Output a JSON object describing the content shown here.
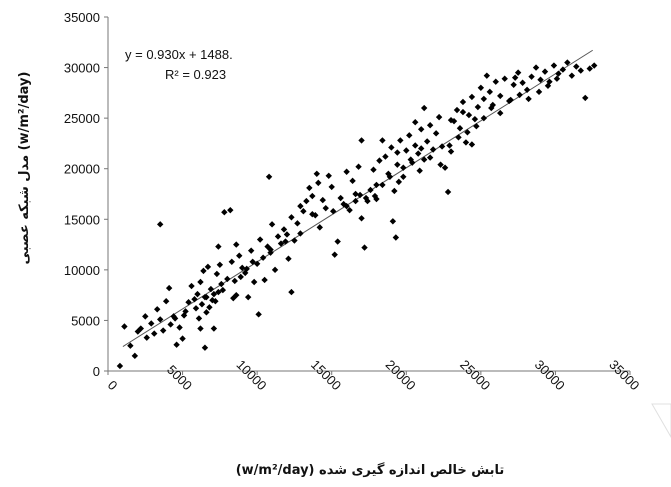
{
  "chart_data": {
    "type": "scatter",
    "title": "",
    "xlabel": "تابش خالص اندازه گیری شده  (w/m²/day)",
    "ylabel": "(w/m²/day)  مدل شبکه عصبی",
    "xlim": [
      0,
      35000
    ],
    "ylim": [
      0,
      35000
    ],
    "xticks": [
      "0",
      "5000",
      "10000",
      "15000",
      "20000",
      "25000",
      "30000",
      "35000"
    ],
    "yticks": [
      "0",
      "5000",
      "10000",
      "15000",
      "20000",
      "25000",
      "30000",
      "35000"
    ],
    "grid": false,
    "legend": "none",
    "trendline": {
      "slope": 0.93,
      "intercept": 1488,
      "x_start": 1000,
      "x_end": 32500,
      "equation_label": "y = 0.930x + 1488.",
      "r2_label": "R² = 0.923"
    },
    "marker_color": "#000000",
    "series": [
      {
        "points": [
          [
            800,
            500
          ],
          [
            1100,
            4400
          ],
          [
            1500,
            2500
          ],
          [
            1800,
            1500
          ],
          [
            2000,
            3900
          ],
          [
            2200,
            4200
          ],
          [
            2500,
            5400
          ],
          [
            2600,
            3300
          ],
          [
            2900,
            4700
          ],
          [
            3100,
            3700
          ],
          [
            3300,
            6100
          ],
          [
            3500,
            5100
          ],
          [
            3700,
            4000
          ],
          [
            3900,
            6900
          ],
          [
            4100,
            8200
          ],
          [
            4200,
            4600
          ],
          [
            4400,
            5400
          ],
          [
            4600,
            2600
          ],
          [
            4800,
            4300
          ],
          [
            5000,
            3200
          ],
          [
            5200,
            5900
          ],
          [
            5400,
            6800
          ],
          [
            5600,
            8400
          ],
          [
            5800,
            7100
          ],
          [
            5900,
            6200
          ],
          [
            6000,
            7600
          ],
          [
            6100,
            5200
          ],
          [
            6200,
            8800
          ],
          [
            6300,
            6600
          ],
          [
            6400,
            9900
          ],
          [
            6500,
            7300
          ],
          [
            6600,
            5800
          ],
          [
            6700,
            10300
          ],
          [
            6800,
            6300
          ],
          [
            6900,
            8100
          ],
          [
            7000,
            7000
          ],
          [
            7100,
            4200
          ],
          [
            7200,
            6900
          ],
          [
            7300,
            9600
          ],
          [
            7400,
            7800
          ],
          [
            7500,
            10500
          ],
          [
            7600,
            8600
          ],
          [
            7800,
            15700
          ],
          [
            8000,
            9100
          ],
          [
            8200,
            15900
          ],
          [
            8300,
            10800
          ],
          [
            8500,
            8900
          ],
          [
            8600,
            7500
          ],
          [
            8800,
            11400
          ],
          [
            9000,
            10200
          ],
          [
            9200,
            9700
          ],
          [
            9400,
            7300
          ],
          [
            9600,
            11900
          ],
          [
            9800,
            8800
          ],
          [
            10000,
            10600
          ],
          [
            10100,
            5600
          ],
          [
            10200,
            13000
          ],
          [
            10400,
            11200
          ],
          [
            10500,
            9000
          ],
          [
            10700,
            12300
          ],
          [
            10800,
            19200
          ],
          [
            10900,
            11700
          ],
          [
            11000,
            14500
          ],
          [
            11200,
            10000
          ],
          [
            11400,
            13300
          ],
          [
            11600,
            12600
          ],
          [
            11800,
            14000
          ],
          [
            12000,
            13500
          ],
          [
            12100,
            11100
          ],
          [
            12300,
            15200
          ],
          [
            12500,
            12900
          ],
          [
            12700,
            14600
          ],
          [
            12900,
            16300
          ],
          [
            13100,
            15800
          ],
          [
            13300,
            16800
          ],
          [
            13500,
            18100
          ],
          [
            13700,
            17300
          ],
          [
            13900,
            15400
          ],
          [
            14100,
            18600
          ],
          [
            14200,
            14200
          ],
          [
            14400,
            16900
          ],
          [
            14600,
            16100
          ],
          [
            14800,
            19300
          ],
          [
            15000,
            18200
          ],
          [
            15200,
            11500
          ],
          [
            15400,
            12800
          ],
          [
            15600,
            17100
          ],
          [
            15800,
            16500
          ],
          [
            16000,
            19700
          ],
          [
            16200,
            15900
          ],
          [
            16400,
            18800
          ],
          [
            16600,
            17500
          ],
          [
            16800,
            20200
          ],
          [
            17000,
            15100
          ],
          [
            17200,
            12200
          ],
          [
            17400,
            16800
          ],
          [
            17600,
            17900
          ],
          [
            17800,
            19900
          ],
          [
            18000,
            17000
          ],
          [
            18200,
            20800
          ],
          [
            18400,
            18400
          ],
          [
            18600,
            21200
          ],
          [
            18800,
            19500
          ],
          [
            19000,
            22100
          ],
          [
            19200,
            17800
          ],
          [
            19400,
            20400
          ],
          [
            19600,
            22800
          ],
          [
            19800,
            19200
          ],
          [
            20000,
            21800
          ],
          [
            20200,
            23300
          ],
          [
            20400,
            20600
          ],
          [
            20600,
            22300
          ],
          [
            20800,
            21500
          ],
          [
            21000,
            23900
          ],
          [
            21200,
            20900
          ],
          [
            21400,
            22700
          ],
          [
            21600,
            24300
          ],
          [
            21800,
            21900
          ],
          [
            22000,
            23500
          ],
          [
            22200,
            25100
          ],
          [
            22400,
            22200
          ],
          [
            22600,
            20100
          ],
          [
            22800,
            17700
          ],
          [
            23000,
            21700
          ],
          [
            23200,
            24700
          ],
          [
            23400,
            25800
          ],
          [
            23600,
            24000
          ],
          [
            23800,
            26600
          ],
          [
            24000,
            22600
          ],
          [
            24200,
            25300
          ],
          [
            24400,
            27100
          ],
          [
            24600,
            24900
          ],
          [
            24800,
            26100
          ],
          [
            25000,
            28000
          ],
          [
            25200,
            26900
          ],
          [
            25400,
            29200
          ],
          [
            25600,
            27600
          ],
          [
            25800,
            26300
          ],
          [
            26000,
            28600
          ],
          [
            26300,
            27200
          ],
          [
            26600,
            28900
          ],
          [
            26900,
            26700
          ],
          [
            27200,
            28300
          ],
          [
            27500,
            29500
          ],
          [
            27800,
            28500
          ],
          [
            28100,
            27800
          ],
          [
            28400,
            29100
          ],
          [
            28700,
            30000
          ],
          [
            29000,
            28800
          ],
          [
            29300,
            29600
          ],
          [
            29600,
            28600
          ],
          [
            29900,
            30200
          ],
          [
            30200,
            29400
          ],
          [
            30500,
            29800
          ],
          [
            30800,
            30500
          ],
          [
            31100,
            29200
          ],
          [
            31400,
            30100
          ],
          [
            31700,
            29700
          ],
          [
            32000,
            27000
          ],
          [
            32300,
            29900
          ],
          [
            32600,
            30200
          ],
          [
            27300,
            29000
          ],
          [
            19100,
            14800
          ],
          [
            19300,
            13200
          ],
          [
            16900,
            17400
          ],
          [
            12300,
            7800
          ],
          [
            8400,
            7200
          ],
          [
            3500,
            14500
          ],
          [
            13700,
            15500
          ],
          [
            14000,
            19500
          ],
          [
            17300,
            17100
          ],
          [
            17900,
            17300
          ],
          [
            17000,
            22800
          ],
          [
            19400,
            21600
          ],
          [
            20600,
            24600
          ],
          [
            21000,
            22000
          ],
          [
            23000,
            24800
          ],
          [
            23800,
            25600
          ],
          [
            18400,
            22800
          ],
          [
            21200,
            26000
          ],
          [
            24400,
            22400
          ],
          [
            19800,
            20100
          ],
          [
            8600,
            12500
          ],
          [
            7400,
            12300
          ],
          [
            6500,
            2300
          ],
          [
            6200,
            4200
          ],
          [
            4500,
            5200
          ],
          [
            5100,
            5500
          ],
          [
            6600,
            7300
          ],
          [
            7100,
            7600
          ],
          [
            7700,
            8000
          ],
          [
            8900,
            9300
          ],
          [
            9300,
            10100
          ],
          [
            9700,
            10800
          ],
          [
            10900,
            12000
          ],
          [
            11900,
            12800
          ],
          [
            12900,
            13600
          ],
          [
            15100,
            15800
          ],
          [
            16000,
            16300
          ],
          [
            16600,
            16800
          ],
          [
            18000,
            18400
          ],
          [
            18900,
            19200
          ],
          [
            19500,
            18700
          ],
          [
            20300,
            20900
          ],
          [
            20900,
            19800
          ],
          [
            21600,
            21100
          ],
          [
            22300,
            20400
          ],
          [
            22900,
            22300
          ],
          [
            23500,
            23100
          ],
          [
            24100,
            23600
          ],
          [
            24700,
            24200
          ],
          [
            25200,
            25000
          ],
          [
            25700,
            26000
          ],
          [
            26300,
            25500
          ],
          [
            27000,
            26800
          ],
          [
            27600,
            27300
          ],
          [
            28200,
            26900
          ],
          [
            28900,
            27600
          ],
          [
            29500,
            28200
          ],
          [
            30100,
            28900
          ]
        ]
      }
    ]
  }
}
